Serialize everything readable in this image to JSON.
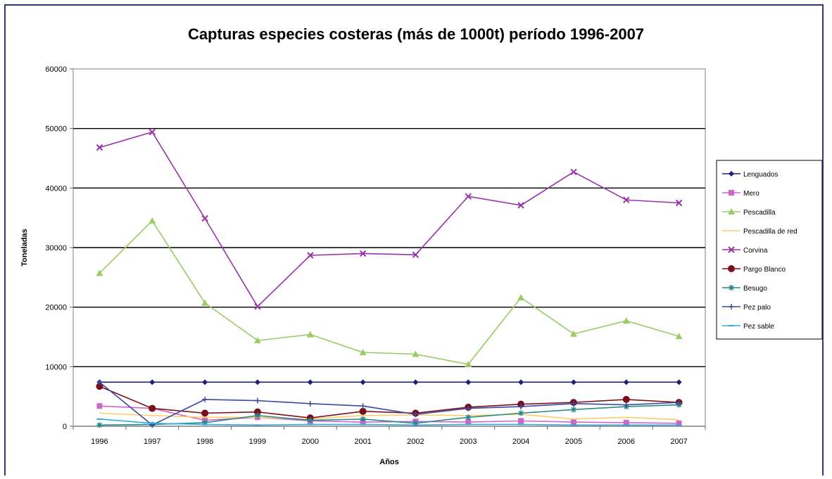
{
  "chart_data": {
    "type": "line",
    "title": "Capturas especies costeras (más de 1000t) período 1996-2007",
    "xlabel": "Años",
    "ylabel": "Toneladas",
    "ylim": [
      0,
      60000
    ],
    "yticks": [
      0,
      10000,
      20000,
      30000,
      40000,
      50000,
      60000
    ],
    "ytick_labels": [
      "0",
      "10000",
      "20000",
      "30000",
      "40000",
      "50000",
      "60000"
    ],
    "categories": [
      "1996",
      "1997",
      "1998",
      "1999",
      "2000",
      "2001",
      "2002",
      "2003",
      "2004",
      "2005",
      "2006",
      "2007"
    ],
    "grid": "horizontal",
    "legend_position": "right",
    "series": [
      {
        "name": "Lenguados",
        "color": "#1f1f7a",
        "marker": "diamond",
        "values": [
          7400,
          7400,
          7400,
          7400,
          7400,
          7400,
          7400,
          7400,
          7400,
          7400,
          7400,
          7400
        ]
      },
      {
        "name": "Mero",
        "color": "#cc66cc",
        "marker": "square",
        "values": [
          3400,
          3000,
          1000,
          1500,
          900,
          700,
          800,
          700,
          900,
          700,
          600,
          500
        ]
      },
      {
        "name": "Pescadilla",
        "color": "#99cc66",
        "marker": "triangle",
        "values": [
          25700,
          34500,
          20700,
          14400,
          15400,
          12400,
          12100,
          10400,
          21600,
          15500,
          17700,
          15100
        ]
      },
      {
        "name": "Pescadilla de red",
        "color": "#ffcc66",
        "marker": "none",
        "values": [
          2200,
          1800,
          1500,
          1500,
          1200,
          1800,
          1900,
          1800,
          2000,
          1200,
          1500,
          1100
        ]
      },
      {
        "name": "Corvina",
        "color": "#9933aa",
        "marker": "x",
        "values": [
          46800,
          49400,
          34900,
          20100,
          28700,
          29000,
          28800,
          38600,
          37100,
          42700,
          38000,
          37500
        ]
      },
      {
        "name": "Pargo Blanco",
        "color": "#7a0f1a",
        "marker": "circle",
        "values": [
          6700,
          3000,
          2200,
          2400,
          1400,
          2500,
          2200,
          3200,
          3700,
          4000,
          4500,
          4000
        ]
      },
      {
        "name": "Besugo",
        "color": "#2a8a8a",
        "marker": "star",
        "values": [
          200,
          300,
          600,
          1800,
          1000,
          1200,
          500,
          1500,
          2200,
          2800,
          3300,
          3600
        ]
      },
      {
        "name": "Pez palo",
        "color": "#3a4aa0",
        "marker": "plus",
        "values": [
          7400,
          200,
          4500,
          4300,
          3800,
          3400,
          2000,
          3000,
          3300,
          3800,
          3600,
          4000
        ]
      },
      {
        "name": "Pez sable",
        "color": "#33aadd",
        "marker": "dash",
        "values": [
          1200,
          500,
          300,
          200,
          300,
          300,
          200,
          300,
          300,
          200,
          200,
          200
        ]
      }
    ]
  }
}
